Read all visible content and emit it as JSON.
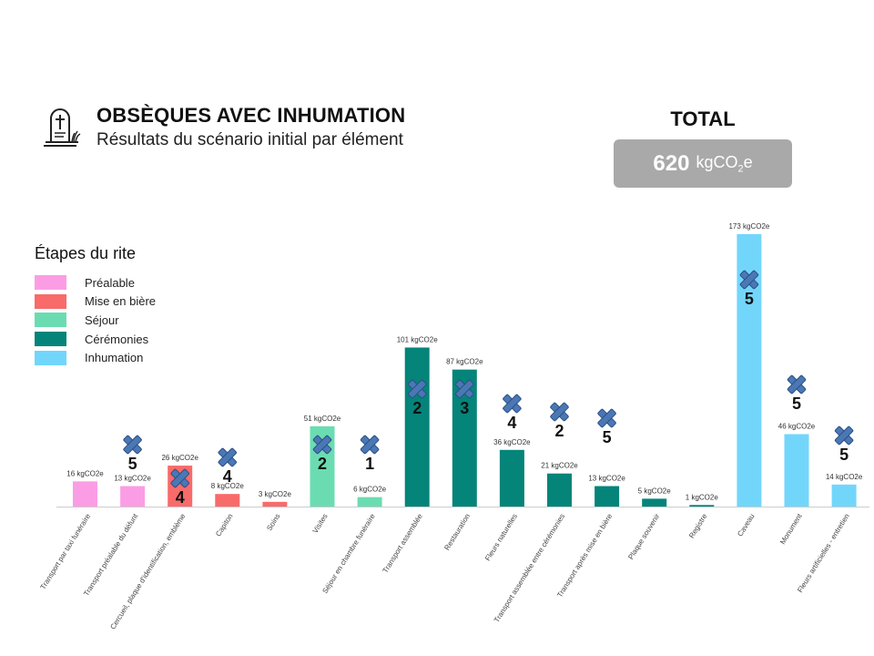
{
  "header": {
    "title": "OBSÈQUES AVEC INHUMATION",
    "subtitle": "Résultats du scénario initial par élément"
  },
  "total": {
    "label": "TOTAL",
    "value": "620",
    "unit_prefix": "kgCO",
    "unit_sub": "2",
    "unit_suffix": "e"
  },
  "legend": {
    "title": "Étapes du rite",
    "items": [
      {
        "label": "Préalable",
        "color": "#fb9de5"
      },
      {
        "label": "Mise en bière",
        "color": "#f96a6a"
      },
      {
        "label": "Séjour",
        "color": "#6bdcb2"
      },
      {
        "label": "Cérémonies",
        "color": "#05847a"
      },
      {
        "label": "Inhumation",
        "color": "#72d6fb"
      }
    ]
  },
  "colors": {
    "marker_fill": "#4a78b5",
    "marker_stroke": "#2d4f85",
    "axis": "#cccccc"
  },
  "chart_data": {
    "type": "bar",
    "unit": "kgCO2e",
    "ylim": [
      0,
      180
    ],
    "categories": [
      "Transport par taxi funéraire",
      "Transport préalable du défunt",
      "Cercueil, plaque d'identification, emblème",
      "Capiton",
      "Soins",
      "Visites",
      "Séjour en chambre funéraire",
      "Transport assemblée",
      "Restauration",
      "Fleurs naturelles",
      "Transport assemblée entre cérémonies",
      "Transport après mise en bière",
      "Plaque souvenir",
      "Registre",
      "Caveau",
      "Monument",
      "Fleurs artificielles - entretien"
    ],
    "values": [
      16,
      13,
      26,
      8,
      3,
      51,
      6,
      101,
      87,
      36,
      21,
      13,
      5,
      1,
      173,
      46,
      14
    ],
    "data_labels": [
      "16 kgCO2e",
      "13 kgCO2e",
      "26 kgCO2e",
      "8 kgCO2e",
      "3 kgCO2e",
      "51 kgCO2e",
      "6 kgCO2e",
      "101 kgCO2e",
      "87 kgCO2e",
      "36 kgCO2e",
      "21 kgCO2e",
      "13 kgCO2e",
      "5 kgCO2e",
      "1 kgCO2e",
      "173 kgCO2e",
      "46 kgCO2e",
      "14 kgCO2e"
    ],
    "stages": [
      0,
      0,
      1,
      1,
      1,
      2,
      2,
      3,
      3,
      3,
      3,
      3,
      3,
      3,
      4,
      4,
      4
    ],
    "markers": [
      {
        "bar": 1,
        "number": "5"
      },
      {
        "bar": 2,
        "number": "4"
      },
      {
        "bar": 3,
        "number": "4"
      },
      {
        "bar": 5,
        "number": "2"
      },
      {
        "bar": 6,
        "number": "1"
      },
      {
        "bar": 7,
        "number": "2"
      },
      {
        "bar": 8,
        "number": "3"
      },
      {
        "bar": 9,
        "number": "4"
      },
      {
        "bar": 10,
        "number": "2"
      },
      {
        "bar": 11,
        "number": "5"
      },
      {
        "bar": 14,
        "number": "5"
      },
      {
        "bar": 15,
        "number": "5"
      },
      {
        "bar": 16,
        "number": "5"
      }
    ]
  }
}
